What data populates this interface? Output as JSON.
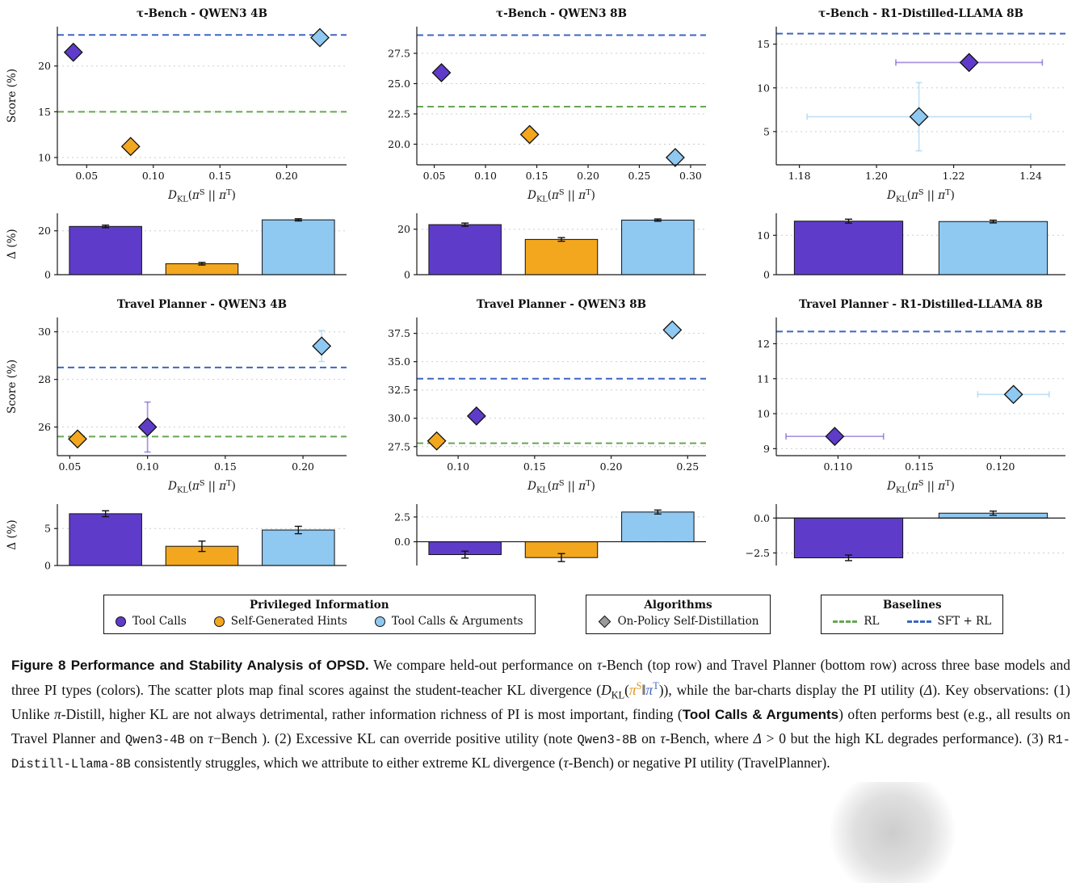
{
  "figure": {
    "colors": {
      "tool_calls": "#5E3CC9",
      "hints": "#F3A71F",
      "tool_args": "#8FC8F0",
      "rl": "#67A653",
      "sft": "#3E66C2",
      "gray": "#9A9A9A"
    },
    "xlabel_segments": [
      {
        "s": "i",
        "t": "D"
      },
      {
        "s": "sub",
        "t": "KL"
      },
      {
        "s": "n",
        "t": "("
      },
      {
        "s": "i",
        "t": "π"
      },
      {
        "s": "sup",
        "t": "S"
      },
      {
        "s": "n",
        "t": " || "
      },
      {
        "s": "i",
        "t": "π"
      },
      {
        "s": "sup",
        "t": "T"
      },
      {
        "s": "n",
        "t": ")"
      }
    ]
  },
  "chart_data": [
    {
      "type": "scatter+bar",
      "title": "τ-Bench - QWEN3 4B",
      "scatter": {
        "ylabel": "Score (%)",
        "xlim": [
          0.028,
          0.245
        ],
        "ylim": [
          9.2,
          24.3
        ],
        "xticks": [
          {
            "v": 0.05,
            "l": "0.05"
          },
          {
            "v": 0.1,
            "l": "0.10"
          },
          {
            "v": 0.15,
            "l": "0.15"
          },
          {
            "v": 0.2,
            "l": "0.20"
          }
        ],
        "yticks": [
          {
            "v": 10,
            "l": "10"
          },
          {
            "v": 15,
            "l": "15"
          },
          {
            "v": 20,
            "l": "20"
          }
        ],
        "baselines": [
          {
            "c": "rl",
            "y": 15.0
          },
          {
            "c": "sft",
            "y": 23.4
          }
        ],
        "points": [
          {
            "c": "tool_calls",
            "x": 0.04,
            "y": 21.5
          },
          {
            "c": "hints",
            "x": 0.083,
            "y": 11.2
          },
          {
            "c": "tool_args",
            "x": 0.225,
            "y": 23.1
          }
        ]
      },
      "bars": {
        "ylabel": "Δ (%)",
        "ylim": [
          0,
          28
        ],
        "yticks": [
          {
            "v": 0,
            "l": "0"
          },
          {
            "v": 20,
            "l": "20"
          }
        ],
        "values": [
          {
            "c": "tool_calls",
            "v": 22.0,
            "e": 0.6
          },
          {
            "c": "hints",
            "v": 5.0,
            "e": 0.6
          },
          {
            "c": "tool_args",
            "v": 25.0,
            "e": 0.5
          }
        ]
      }
    },
    {
      "type": "scatter+bar",
      "title": "τ-Bench - QWEN3 8B",
      "scatter": {
        "xlim": [
          0.033,
          0.315
        ],
        "ylim": [
          18.3,
          29.7
        ],
        "xticks": [
          {
            "v": 0.05,
            "l": "0.05"
          },
          {
            "v": 0.1,
            "l": "0.10"
          },
          {
            "v": 0.15,
            "l": "0.15"
          },
          {
            "v": 0.2,
            "l": "0.20"
          },
          {
            "v": 0.25,
            "l": "0.25"
          },
          {
            "v": 0.3,
            "l": "0.30"
          }
        ],
        "yticks": [
          {
            "v": 20.0,
            "l": "20.0"
          },
          {
            "v": 22.5,
            "l": "22.5"
          },
          {
            "v": 25.0,
            "l": "25.0"
          },
          {
            "v": 27.5,
            "l": "27.5"
          }
        ],
        "baselines": [
          {
            "c": "rl",
            "y": 23.1
          },
          {
            "c": "sft",
            "y": 29.0
          }
        ],
        "points": [
          {
            "c": "tool_calls",
            "x": 0.057,
            "y": 25.9
          },
          {
            "c": "hints",
            "x": 0.143,
            "y": 20.8
          },
          {
            "c": "tool_args",
            "x": 0.285,
            "y": 18.9
          }
        ]
      },
      "bars": {
        "ylim": [
          0,
          27
        ],
        "yticks": [
          {
            "v": 0,
            "l": "0"
          },
          {
            "v": 20,
            "l": "20"
          }
        ],
        "values": [
          {
            "c": "tool_calls",
            "v": 22.0,
            "e": 0.7
          },
          {
            "c": "hints",
            "v": 15.5,
            "e": 0.8
          },
          {
            "c": "tool_args",
            "v": 24.0,
            "e": 0.5
          }
        ]
      }
    },
    {
      "type": "scatter+bar",
      "title": "τ-Bench - R1-Distilled-LLAMA 8B",
      "scatter": {
        "xlim": [
          1.174,
          1.249
        ],
        "ylim": [
          1.2,
          17.0
        ],
        "xticks": [
          {
            "v": 1.18,
            "l": "1.18"
          },
          {
            "v": 1.2,
            "l": "1.20"
          },
          {
            "v": 1.22,
            "l": "1.22"
          },
          {
            "v": 1.24,
            "l": "1.24"
          }
        ],
        "yticks": [
          {
            "v": 5,
            "l": "5"
          },
          {
            "v": 10,
            "l": "10"
          },
          {
            "v": 15,
            "l": "15"
          }
        ],
        "baselines": [
          {
            "c": "sft",
            "y": 16.2
          }
        ],
        "points": [
          {
            "c": "tool_calls",
            "x": 1.224,
            "y": 12.9,
            "xe": 0.019
          },
          {
            "c": "tool_args",
            "x": 1.211,
            "y": 6.7,
            "xe": 0.029,
            "ye": 3.9
          }
        ]
      },
      "bars": {
        "ylim": [
          0,
          15.6
        ],
        "yticks": [
          {
            "v": 0,
            "l": "0"
          },
          {
            "v": 10,
            "l": "10"
          }
        ],
        "values": [
          {
            "c": "tool_calls",
            "v": 13.6,
            "e": 0.5
          },
          {
            "c": "tool_args",
            "v": 13.5,
            "e": 0.35
          }
        ]
      }
    },
    {
      "type": "scatter+bar",
      "title": "Travel Planner - QWEN3 4B",
      "scatter": {
        "ylabel": "Score (%)",
        "xlim": [
          0.042,
          0.228
        ],
        "ylim": [
          24.8,
          30.6
        ],
        "xticks": [
          {
            "v": 0.05,
            "l": "0.05"
          },
          {
            "v": 0.1,
            "l": "0.10"
          },
          {
            "v": 0.15,
            "l": "0.15"
          },
          {
            "v": 0.2,
            "l": "0.20"
          }
        ],
        "yticks": [
          {
            "v": 26,
            "l": "26"
          },
          {
            "v": 28,
            "l": "28"
          },
          {
            "v": 30,
            "l": "30"
          }
        ],
        "baselines": [
          {
            "c": "rl",
            "y": 25.6
          },
          {
            "c": "sft",
            "y": 28.5
          }
        ],
        "points": [
          {
            "c": "hints",
            "x": 0.055,
            "y": 25.5
          },
          {
            "c": "tool_calls",
            "x": 0.1,
            "y": 26.0,
            "ye": 1.05
          },
          {
            "c": "tool_args",
            "x": 0.212,
            "y": 29.4,
            "ye": 0.65
          }
        ]
      },
      "bars": {
        "ylabel": "Δ (%)",
        "ylim": [
          0,
          8.3
        ],
        "yticks": [
          {
            "v": 0,
            "l": "0"
          },
          {
            "v": 5,
            "l": "5"
          }
        ],
        "values": [
          {
            "c": "tool_calls",
            "v": 7.0,
            "e": 0.4
          },
          {
            "c": "hints",
            "v": 2.6,
            "e": 0.7
          },
          {
            "c": "tool_args",
            "v": 4.8,
            "e": 0.5
          }
        ]
      }
    },
    {
      "type": "scatter+bar",
      "title": "Travel Planner - QWEN3 8B",
      "scatter": {
        "xlim": [
          0.073,
          0.262
        ],
        "ylim": [
          26.7,
          38.9
        ],
        "xticks": [
          {
            "v": 0.1,
            "l": "0.10"
          },
          {
            "v": 0.15,
            "l": "0.15"
          },
          {
            "v": 0.2,
            "l": "0.20"
          },
          {
            "v": 0.25,
            "l": "0.25"
          }
        ],
        "yticks": [
          {
            "v": 27.5,
            "l": "27.5"
          },
          {
            "v": 30.0,
            "l": "30.0"
          },
          {
            "v": 32.5,
            "l": "32.5"
          },
          {
            "v": 35.0,
            "l": "35.0"
          },
          {
            "v": 37.5,
            "l": "37.5"
          }
        ],
        "baselines": [
          {
            "c": "rl",
            "y": 27.8
          },
          {
            "c": "sft",
            "y": 33.5
          }
        ],
        "points": [
          {
            "c": "hints",
            "x": 0.086,
            "y": 28.0
          },
          {
            "c": "tool_calls",
            "x": 0.112,
            "y": 30.2
          },
          {
            "c": "tool_args",
            "x": 0.24,
            "y": 37.8
          }
        ]
      },
      "bars": {
        "ylim": [
          -2.4,
          3.8
        ],
        "yticks": [
          {
            "v": 0,
            "l": "0.0"
          },
          {
            "v": 2.5,
            "l": "2.5"
          }
        ],
        "values": [
          {
            "c": "tool_calls",
            "v": -1.3,
            "e": 0.35
          },
          {
            "c": "hints",
            "v": -1.6,
            "e": 0.4
          },
          {
            "c": "tool_args",
            "v": 3.0,
            "e": 0.2
          }
        ]
      }
    },
    {
      "type": "scatter+bar",
      "title": "Travel Planner - R1-Distilled-LLAMA 8B",
      "scatter": {
        "xlim": [
          0.1062,
          0.124
        ],
        "ylim": [
          8.8,
          12.75
        ],
        "xticks": [
          {
            "v": 0.11,
            "l": "0.110"
          },
          {
            "v": 0.115,
            "l": "0.115"
          },
          {
            "v": 0.12,
            "l": "0.120"
          }
        ],
        "yticks": [
          {
            "v": 9,
            "l": "9"
          },
          {
            "v": 10,
            "l": "10"
          },
          {
            "v": 11,
            "l": "11"
          },
          {
            "v": 12,
            "l": "12"
          }
        ],
        "baselines": [
          {
            "c": "sft",
            "y": 12.35
          }
        ],
        "points": [
          {
            "c": "tool_calls",
            "x": 0.1098,
            "y": 9.35,
            "xe": 0.003
          },
          {
            "c": "tool_args",
            "x": 0.1208,
            "y": 10.55,
            "xe": 0.0022
          }
        ]
      },
      "bars": {
        "ylim": [
          -3.4,
          1.0
        ],
        "yticks": [
          {
            "v": -2.5,
            "l": "−2.5"
          },
          {
            "v": 0,
            "l": "0.0"
          }
        ],
        "values": [
          {
            "c": "tool_calls",
            "v": -2.85,
            "e": 0.2
          },
          {
            "c": "tool_args",
            "v": 0.35,
            "e": 0.15
          }
        ]
      }
    }
  ],
  "legend": {
    "privileged": {
      "title": "Privileged Information",
      "items": [
        {
          "label": "Tool Calls",
          "color_key": "tool_calls"
        },
        {
          "label": "Self-Generated Hints",
          "color_key": "hints"
        },
        {
          "label": "Tool Calls & Arguments",
          "color_key": "tool_args"
        }
      ]
    },
    "algorithms": {
      "title": "Algorithms",
      "items": [
        {
          "label": "On-Policy Self-Distillation",
          "color_key": "gray"
        }
      ]
    },
    "baselines": {
      "title": "Baselines",
      "items": [
        {
          "label": "RL",
          "color_key": "rl"
        },
        {
          "label": "SFT + RL",
          "color_key": "sft"
        }
      ]
    }
  },
  "caption": {
    "segments": [
      {
        "s": "b",
        "t": "Figure 8"
      },
      {
        "s": "b",
        "t": "  Performance and Stability Analysis of OPSD."
      },
      {
        "s": "n",
        "t": " We compare held-out performance on "
      },
      {
        "s": "i",
        "t": "τ"
      },
      {
        "s": "n",
        "t": "-Bench (top row) and Travel Planner (bottom row) across three base models and three PI types (colors). The scatter plots map final scores against the student-teacher KL divergence ("
      },
      {
        "s": "i",
        "t": "D"
      },
      {
        "s": "sub",
        "t": "KL"
      },
      {
        "s": "n",
        "t": "("
      },
      {
        "s": "oi",
        "t": "π"
      },
      {
        "s": "osup",
        "t": "S"
      },
      {
        "s": "n",
        "t": "‖"
      },
      {
        "s": "bi",
        "t": "π"
      },
      {
        "s": "bsup",
        "t": "T"
      },
      {
        "s": "n",
        "t": ")), while the bar-charts display the PI utility ("
      },
      {
        "s": "i",
        "t": "Δ"
      },
      {
        "s": "n",
        "t": "). Key observations: (1) Unlike "
      },
      {
        "s": "i",
        "t": "π"
      },
      {
        "s": "n",
        "t": "-Distill, higher KL are not always detrimental, rather information richness of PI is most important, finding ("
      },
      {
        "s": "b",
        "t": "Tool Calls & Arguments"
      },
      {
        "s": "n",
        "t": ") often performs best (e.g., all results on Travel Planner and "
      },
      {
        "s": "m",
        "t": "Qwen3-4B"
      },
      {
        "s": "n",
        "t": " on "
      },
      {
        "s": "i",
        "t": "τ"
      },
      {
        "s": "n",
        "t": "−Bench ). (2) Excessive KL can override positive utility (note "
      },
      {
        "s": "m",
        "t": "Qwen3-8B"
      },
      {
        "s": "n",
        "t": " on "
      },
      {
        "s": "i",
        "t": "τ"
      },
      {
        "s": "n",
        "t": "-Bench, where "
      },
      {
        "s": "i",
        "t": "Δ"
      },
      {
        "s": "n",
        "t": " > 0 but the high KL degrades performance). (3) "
      },
      {
        "s": "m",
        "t": "R1-Distill-Llama-8B"
      },
      {
        "s": "n",
        "t": " consistently struggles, which we attribute to either extreme KL divergence ("
      },
      {
        "s": "i",
        "t": "τ"
      },
      {
        "s": "n",
        "t": "-Bench) or negative PI utility (TravelPlanner)."
      }
    ]
  }
}
